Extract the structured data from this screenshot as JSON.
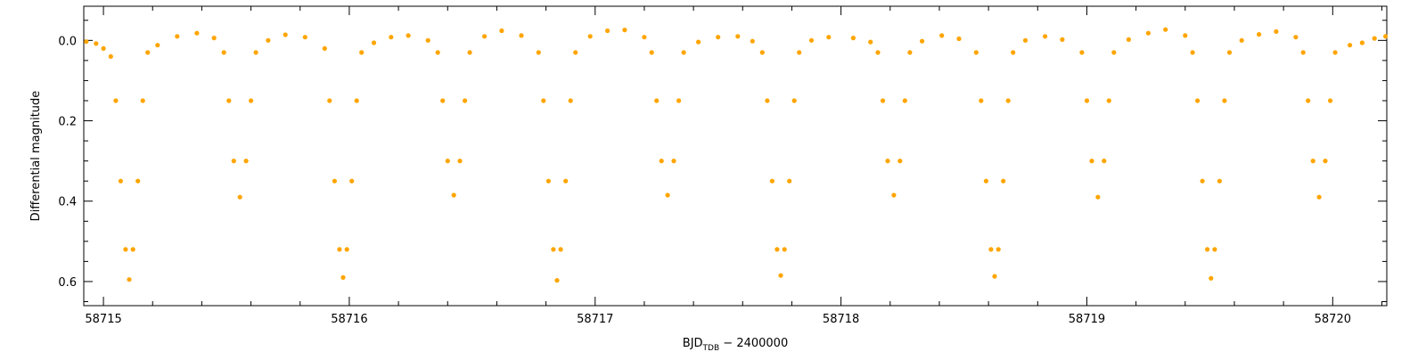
{
  "chart_data": {
    "type": "scatter",
    "title": "",
    "xlabel": "BJD",
    "xlabel_sub": "TDB",
    "xlabel_suffix": " − 2400000",
    "ylabel": "Differential magnitude",
    "xlim": [
      58714.92,
      58720.22
    ],
    "ylim": [
      0.66,
      -0.085
    ],
    "y_inverted": true,
    "grid": false,
    "x_ticks": [
      58715,
      58716,
      58717,
      58718,
      58719,
      58720
    ],
    "x_tick_labels": [
      "58715",
      "58716",
      "58717",
      "58718",
      "58719",
      "58720"
    ],
    "y_ticks": [
      0.0,
      0.2,
      0.4,
      0.6
    ],
    "y_tick_labels": [
      "0.0",
      "0.2",
      "0.4",
      "0.6"
    ],
    "series": [
      {
        "color": "#FFA500",
        "points": [
          [
            58714.93,
            0.003
          ],
          [
            58714.97,
            0.008
          ],
          [
            58715.0,
            0.02
          ],
          [
            58715.03,
            0.04
          ],
          [
            58715.05,
            0.15
          ],
          [
            58715.07,
            0.35
          ],
          [
            58715.09,
            0.52
          ],
          [
            58715.105,
            0.595
          ],
          [
            58715.12,
            0.52
          ],
          [
            58715.14,
            0.35
          ],
          [
            58715.16,
            0.15
          ],
          [
            58715.18,
            0.03
          ],
          [
            58715.22,
            0.012
          ],
          [
            58715.3,
            -0.01
          ],
          [
            58715.38,
            -0.018
          ],
          [
            58715.45,
            -0.006
          ],
          [
            58715.49,
            0.03
          ],
          [
            58715.51,
            0.15
          ],
          [
            58715.53,
            0.3
          ],
          [
            58715.555,
            0.39
          ],
          [
            58715.58,
            0.3
          ],
          [
            58715.6,
            0.15
          ],
          [
            58715.62,
            0.03
          ],
          [
            58715.67,
            0.0
          ],
          [
            58715.74,
            -0.014
          ],
          [
            58715.82,
            -0.008
          ],
          [
            58715.9,
            0.02
          ],
          [
            58715.92,
            0.15
          ],
          [
            58715.94,
            0.35
          ],
          [
            58715.96,
            0.52
          ],
          [
            58715.975,
            0.59
          ],
          [
            58715.99,
            0.52
          ],
          [
            58716.01,
            0.35
          ],
          [
            58716.03,
            0.15
          ],
          [
            58716.05,
            0.03
          ],
          [
            58716.1,
            0.006
          ],
          [
            58716.17,
            -0.008
          ],
          [
            58716.24,
            -0.012
          ],
          [
            58716.32,
            0.0
          ],
          [
            58716.36,
            0.03
          ],
          [
            58716.38,
            0.15
          ],
          [
            58716.4,
            0.3
          ],
          [
            58716.425,
            0.385
          ],
          [
            58716.45,
            0.3
          ],
          [
            58716.47,
            0.15
          ],
          [
            58716.49,
            0.03
          ],
          [
            58716.55,
            -0.01
          ],
          [
            58716.62,
            -0.024
          ],
          [
            58716.7,
            -0.012
          ],
          [
            58716.77,
            0.03
          ],
          [
            58716.79,
            0.15
          ],
          [
            58716.81,
            0.35
          ],
          [
            58716.83,
            0.52
          ],
          [
            58716.845,
            0.597
          ],
          [
            58716.86,
            0.52
          ],
          [
            58716.88,
            0.35
          ],
          [
            58716.9,
            0.15
          ],
          [
            58716.92,
            0.03
          ],
          [
            58716.98,
            -0.01
          ],
          [
            58717.05,
            -0.024
          ],
          [
            58717.12,
            -0.026
          ],
          [
            58717.2,
            -0.008
          ],
          [
            58717.23,
            0.03
          ],
          [
            58717.25,
            0.15
          ],
          [
            58717.27,
            0.3
          ],
          [
            58717.295,
            0.385
          ],
          [
            58717.32,
            0.3
          ],
          [
            58717.34,
            0.15
          ],
          [
            58717.36,
            0.03
          ],
          [
            58717.42,
            0.004
          ],
          [
            58717.5,
            -0.008
          ],
          [
            58717.58,
            -0.01
          ],
          [
            58717.64,
            0.002
          ],
          [
            58717.68,
            0.03
          ],
          [
            58717.7,
            0.15
          ],
          [
            58717.72,
            0.35
          ],
          [
            58717.74,
            0.52
          ],
          [
            58717.755,
            0.585
          ],
          [
            58717.77,
            0.52
          ],
          [
            58717.79,
            0.35
          ],
          [
            58717.81,
            0.15
          ],
          [
            58717.83,
            0.03
          ],
          [
            58717.88,
            0.0
          ],
          [
            58717.95,
            -0.008
          ],
          [
            58718.05,
            -0.006
          ],
          [
            58718.12,
            0.004
          ],
          [
            58718.15,
            0.03
          ],
          [
            58718.17,
            0.15
          ],
          [
            58718.19,
            0.3
          ],
          [
            58718.215,
            0.385
          ],
          [
            58718.24,
            0.3
          ],
          [
            58718.26,
            0.15
          ],
          [
            58718.28,
            0.03
          ],
          [
            58718.33,
            0.002
          ],
          [
            58718.41,
            -0.012
          ],
          [
            58718.48,
            -0.004
          ],
          [
            58718.55,
            0.03
          ],
          [
            58718.57,
            0.15
          ],
          [
            58718.59,
            0.35
          ],
          [
            58718.61,
            0.52
          ],
          [
            58718.625,
            0.587
          ],
          [
            58718.64,
            0.52
          ],
          [
            58718.66,
            0.35
          ],
          [
            58718.68,
            0.15
          ],
          [
            58718.7,
            0.03
          ],
          [
            58718.75,
            0.0
          ],
          [
            58718.83,
            -0.01
          ],
          [
            58718.9,
            -0.002
          ],
          [
            58718.98,
            0.03
          ],
          [
            58719.0,
            0.15
          ],
          [
            58719.02,
            0.3
          ],
          [
            58719.045,
            0.39
          ],
          [
            58719.07,
            0.3
          ],
          [
            58719.09,
            0.15
          ],
          [
            58719.11,
            0.03
          ],
          [
            58719.17,
            -0.002
          ],
          [
            58719.25,
            -0.018
          ],
          [
            58719.32,
            -0.027
          ],
          [
            58719.4,
            -0.012
          ],
          [
            58719.43,
            0.03
          ],
          [
            58719.45,
            0.15
          ],
          [
            58719.47,
            0.35
          ],
          [
            58719.49,
            0.52
          ],
          [
            58719.505,
            0.592
          ],
          [
            58719.52,
            0.52
          ],
          [
            58719.54,
            0.35
          ],
          [
            58719.56,
            0.15
          ],
          [
            58719.58,
            0.03
          ],
          [
            58719.63,
            0.0
          ],
          [
            58719.7,
            -0.015
          ],
          [
            58719.77,
            -0.022
          ],
          [
            58719.85,
            -0.008
          ],
          [
            58719.88,
            0.03
          ],
          [
            58719.9,
            0.15
          ],
          [
            58719.92,
            0.3
          ],
          [
            58719.945,
            0.39
          ],
          [
            58719.97,
            0.3
          ],
          [
            58719.99,
            0.15
          ],
          [
            58720.01,
            0.03
          ],
          [
            58720.07,
            0.012
          ],
          [
            58720.12,
            0.006
          ],
          [
            58720.17,
            -0.005
          ],
          [
            58720.215,
            -0.01
          ]
        ]
      }
    ]
  }
}
